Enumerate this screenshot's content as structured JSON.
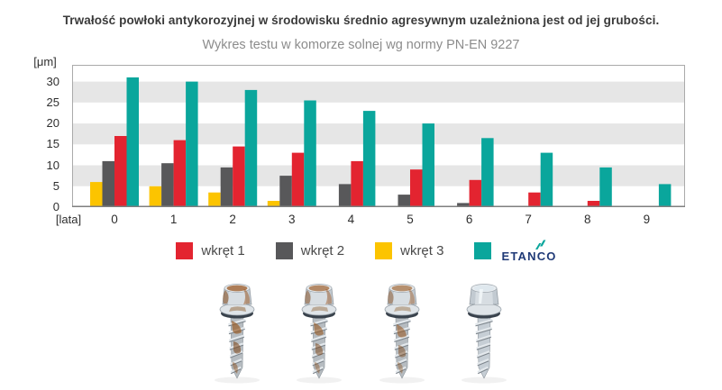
{
  "title": "Trwałość powłoki antykorozyjnej w środowisku średnio agresywnym uzależniona jest od jej grubości.",
  "subtitle": "Wykres testu w komorze solnej wg normy PN-EN 9227",
  "chart_data": {
    "type": "bar",
    "ylabel": "[μm]",
    "xlabel": "[lata]",
    "categories": [
      "0",
      "1",
      "2",
      "3",
      "4",
      "5",
      "6",
      "7",
      "8",
      "9"
    ],
    "yticks": [
      0,
      5,
      10,
      15,
      20,
      25,
      30
    ],
    "ylim": [
      0,
      34
    ],
    "grid_bands": [
      [
        5,
        10
      ],
      [
        15,
        20
      ],
      [
        25,
        30
      ]
    ],
    "grid_band_color": "#e6e6e6",
    "bar_order": [
      "wkręt 3",
      "wkręt 2",
      "wkręt 1",
      "ETANCO"
    ],
    "series": [
      {
        "name": "wkręt 1",
        "color": "#e32430",
        "values": [
          17,
          16,
          14.5,
          13,
          11,
          9,
          6.5,
          3.5,
          1.5,
          0
        ]
      },
      {
        "name": "wkręt 2",
        "color": "#58585a",
        "values": [
          11,
          10.5,
          9.5,
          7.5,
          5.5,
          3,
          1,
          0,
          0,
          0
        ]
      },
      {
        "name": "wkręt 3",
        "color": "#fcc400",
        "values": [
          6,
          5,
          3.5,
          1.5,
          0,
          0,
          0,
          0,
          0,
          0
        ]
      },
      {
        "name": "ETANCO",
        "color": "#0aa69c",
        "values": [
          31,
          30,
          28,
          25.5,
          23,
          20,
          16.5,
          13,
          9.5,
          5.5
        ]
      }
    ]
  },
  "legend": {
    "items": [
      {
        "label": "wkręt 1",
        "color": "#e32430"
      },
      {
        "label": "wkręt 2",
        "color": "#58585a"
      },
      {
        "label": "wkręt 3",
        "color": "#fcc400"
      },
      {
        "label": "ETANCO",
        "color": "#0aa69c",
        "is_logo": true
      }
    ]
  },
  "logo": {
    "text": "ETANCO",
    "color": "#203a77",
    "icon": "lightning-icon",
    "icon_color": "#0aa69c"
  },
  "screws": [
    {
      "name": "screw-photo-wkret-1",
      "rust": 0.95
    },
    {
      "name": "screw-photo-wkret-2",
      "rust": 0.85
    },
    {
      "name": "screw-photo-wkret-3",
      "rust": 0.8
    },
    {
      "name": "screw-photo-etanco",
      "rust": 0
    }
  ]
}
